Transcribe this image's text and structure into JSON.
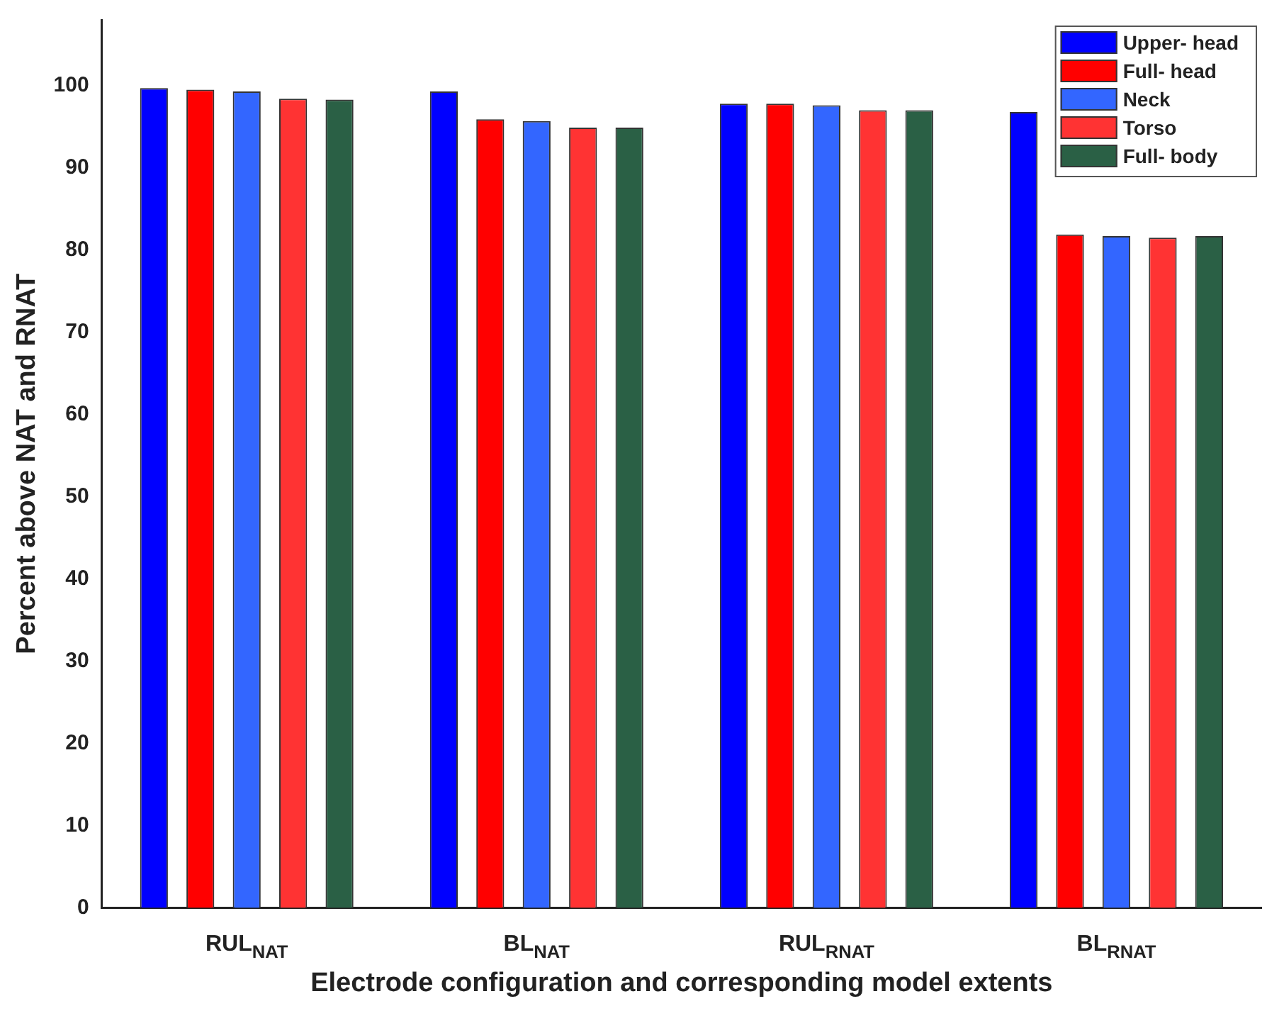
{
  "chart_data": {
    "type": "bar",
    "xlabel": "Electrode configuration and corresponding model extents",
    "ylabel": "Percent above NAT and RNAT",
    "categories": [
      "RUL$_{NAT}$",
      "BL$_{NAT}$",
      "RUL$_{RNAT}$",
      "BL$_{RNAT}$"
    ],
    "series": [
      {
        "name": "Upper- head",
        "color": "#0000ff",
        "values": [
          99.7,
          99.3,
          97.8,
          96.8
        ]
      },
      {
        "name": "Full- head",
        "color": "#ff0000",
        "values": [
          99.5,
          95.9,
          97.8,
          81.9
        ]
      },
      {
        "name": "Neck",
        "color": "#3366ff",
        "values": [
          99.3,
          95.7,
          97.6,
          81.7
        ]
      },
      {
        "name": "Torso",
        "color": "#ff3333",
        "values": [
          98.4,
          94.9,
          97.0,
          81.5
        ]
      },
      {
        "name": "Full- body",
        "color": "#2a6045",
        "values": [
          98.3,
          94.9,
          97.0,
          81.7
        ]
      }
    ],
    "ylim": [
      0,
      108
    ],
    "yticks": [
      0,
      10,
      20,
      30,
      40,
      50,
      60,
      70,
      80,
      90,
      100
    ],
    "grid": false,
    "legend": "top right"
  }
}
